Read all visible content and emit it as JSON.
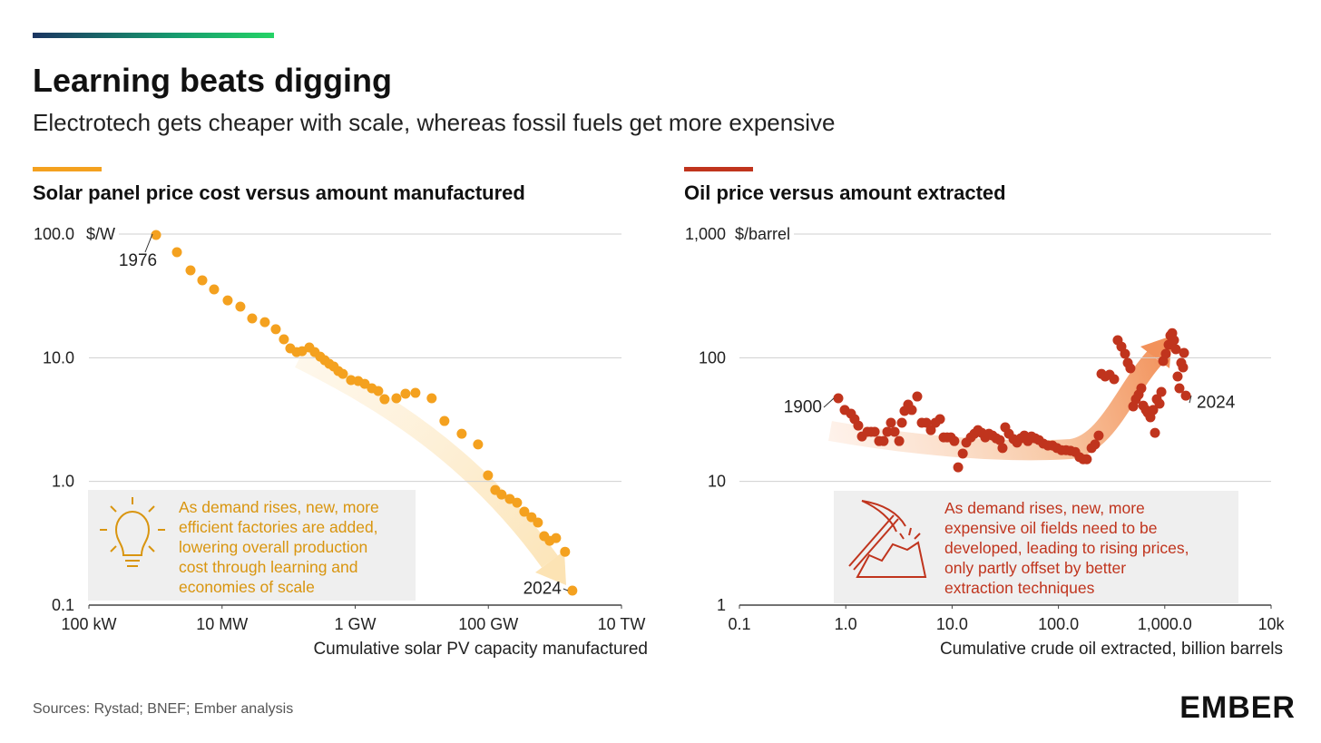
{
  "header": {
    "title": "Learning beats digging",
    "subtitle": "Electrotech gets cheaper with scale, whereas fossil fuels get more expensive"
  },
  "chart_data": [
    {
      "type": "scatter",
      "title": "Solar panel price cost versus amount manufactured",
      "y_unit": "$/W",
      "x_label": "Cumulative solar PV capacity manufactured",
      "log_x": true,
      "log_y": true,
      "grid": true,
      "color": "#f4a11f",
      "xlim": [
        100,
        10000000000
      ],
      "ylim": [
        0.1,
        100
      ],
      "xticks": [
        {
          "value": 100,
          "label": "100 kW"
        },
        {
          "value": 10000,
          "label": "10 MW"
        },
        {
          "value": 1000000,
          "label": "1 GW"
        },
        {
          "value": 100000000,
          "label": "100 GW"
        },
        {
          "value": 10000000000,
          "label": "10 TW"
        }
      ],
      "yticks": [
        0.1,
        {
          "value": 1,
          "label": "1.0"
        },
        {
          "value": 10,
          "label": "10.0"
        },
        {
          "value": 100,
          "label": "100.0"
        }
      ],
      "x": [
        1020,
        2100,
        3360,
        5050,
        7590,
        12150,
        18840,
        28330,
        43950,
        64100,
        84900,
        105900,
        131800,
        159200,
        204600,
        246600,
        297900,
        348300,
        407500,
        476500,
        558000,
        653000,
        865000,
        1110000,
        1390000,
        1780000,
        2220000,
        2760000,
        4160000,
        5690000,
        8030000,
        14100000,
        21900000,
        39800000,
        70000000,
        98800000,
        127000000,
        158000000,
        210000000,
        270000000,
        347000000,
        445000000,
        555000000,
        690000000,
        834000000,
        1040000000,
        1420000000,
        1830000000
      ],
      "values": [
        98.4,
        71.3,
        50.9,
        42.3,
        35.7,
        29.1,
        25.9,
        20.8,
        19.4,
        17.0,
        14.1,
        11.9,
        11.1,
        11.3,
        12.1,
        11.1,
        10.2,
        9.55,
        8.93,
        8.49,
        7.8,
        7.41,
        6.59,
        6.48,
        6.15,
        5.66,
        5.38,
        4.62,
        4.7,
        5.12,
        5.2,
        4.7,
        3.08,
        2.43,
        1.99,
        1.12,
        0.853,
        0.783,
        0.721,
        0.673,
        0.569,
        0.514,
        0.465,
        0.361,
        0.331,
        0.348,
        0.27,
        0.131
      ],
      "annotations": [
        "1976",
        "2024"
      ],
      "note": [
        "As demand rises, new, more",
        "efficient factories are added,",
        "lowering overall production",
        "cost through learning and",
        "economies of scale"
      ]
    },
    {
      "type": "scatter",
      "title": "Oil price versus amount extracted",
      "y_unit": "$/barrel",
      "x_label": "Cumulative crude oil extracted, billion barrels",
      "log_x": true,
      "log_y": true,
      "grid": true,
      "color": "#c0341d",
      "xlim": [
        0.1,
        10000
      ],
      "ylim": [
        1,
        1000
      ],
      "xticks": [
        0.1,
        {
          "value": 1,
          "label": "1.0"
        },
        {
          "value": 10,
          "label": "10.0"
        },
        {
          "value": 100,
          "label": "100.0"
        },
        {
          "value": 1000,
          "label": "1,000.0"
        },
        {
          "value": 10000,
          "label": "10k"
        }
      ],
      "yticks": [
        1,
        10,
        100,
        {
          "value": 1000,
          "label": "1,000"
        }
      ],
      "x": [
        0.851,
        0.977,
        1.12,
        1.21,
        1.31,
        1.42,
        1.6,
        1.73,
        1.87,
        2.06,
        2.27,
        2.46,
        2.66,
        2.88,
        3.18,
        3.37,
        3.57,
        3.86,
        4.18,
        4.7,
        5.19,
        5.73,
        6.31,
        6.97,
        7.69,
        8.32,
        8.99,
        9.73,
        10.5,
        11.4,
        12.6,
        13.6,
        15.0,
        16.2,
        17.5,
        19.0,
        20.5,
        22.2,
        24.0,
        26.0,
        28.1,
        29.8,
        31.6,
        34.2,
        37.8,
        40.8,
        44.2,
        47.8,
        51.6,
        55.8,
        60.5,
        65.5,
        72.1,
        79.6,
        87.9,
        96.8,
        107,
        118,
        130,
        144,
        158,
        171,
        185,
        205,
        221,
        239,
        254,
        275,
        303,
        334,
        361,
        391,
        423,
        449,
        475,
        505,
        535,
        568,
        602,
        627,
        665,
        692,
        733,
        778,
        809,
        841,
        893,
        929,
        966,
        1023,
        1087,
        1130,
        1175,
        1222,
        1271,
        1321,
        1374,
        1429,
        1486,
        1517,
        1578
      ],
      "values": [
        47.0,
        37.8,
        35.3,
        31.9,
        28.3,
        23.1,
        25.2,
        25.2,
        25.2,
        21.2,
        21.2,
        25.2,
        29.8,
        25.2,
        21.2,
        29.8,
        37.1,
        41.8,
        37.8,
        48.6,
        29.8,
        29.8,
        26.0,
        29.8,
        31.9,
        22.7,
        22.7,
        22.7,
        21.2,
        13.0,
        16.8,
        20.6,
        22.7,
        24.3,
        26.0,
        24.7,
        22.7,
        24.3,
        23.5,
        22.3,
        21.6,
        18.6,
        27.4,
        24.3,
        22.0,
        20.6,
        22.3,
        23.5,
        21.2,
        23.1,
        22.3,
        21.6,
        20.2,
        19.5,
        19.5,
        18.6,
        17.9,
        17.9,
        17.7,
        17.3,
        15.7,
        15.1,
        15.1,
        18.6,
        19.9,
        23.5,
        74.1,
        70.5,
        73.0,
        67.0,
        138.7,
        123,
        107.6,
        90.8,
        82.1,
        40.4,
        46.2,
        50.3,
        56.6,
        41.0,
        37.8,
        35.9,
        33.0,
        37.8,
        24.7,
        46.2,
        42.5,
        52.9,
        94.0,
        107.6,
        127.4,
        151,
        158,
        138.7,
        117,
        70.5,
        56.6,
        90.8,
        83.5,
        109.4,
        49.4
      ],
      "annotations": [
        "1900",
        "2024"
      ],
      "note": [
        "As demand rises, new, more",
        "expensive oil fields need to be",
        "developed, leading to rising prices,",
        "only partly offset by better",
        "extraction techniques"
      ]
    }
  ],
  "source": "Sources: Rystad; BNEF; Ember analysis",
  "logo": "EMBER"
}
